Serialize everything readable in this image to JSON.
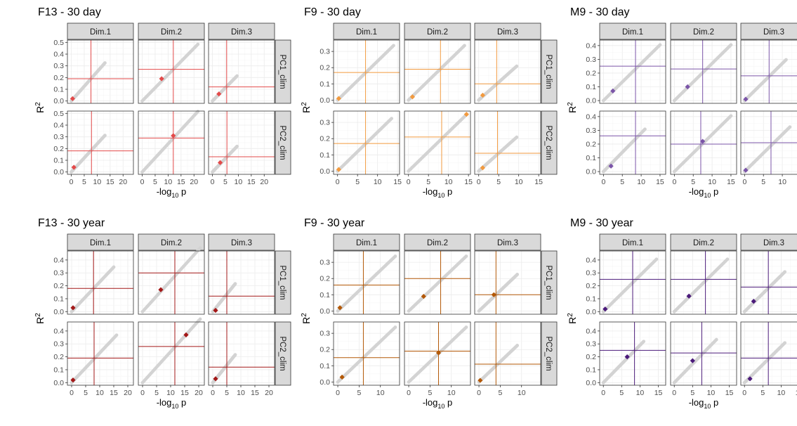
{
  "figure": {
    "facet_cols": [
      "Dim.1",
      "Dim.2",
      "Dim.3"
    ],
    "facet_rows": [
      "PC1_clim",
      "PC2_clim"
    ],
    "xlabel_base": "-log",
    "xlabel_sub": "10",
    "xlabel_tail": " p",
    "ylabel_base": "R",
    "ylabel_sup": "2",
    "background_point_color": "#d3d3d3"
  },
  "chart_data": [
    {
      "type": "scatter",
      "title": "F13 - 30 day",
      "color": "#e34a4a",
      "xlim": [
        -1.5,
        24
      ],
      "xticks": [
        0,
        5,
        10,
        15,
        20
      ],
      "ylim": [
        -0.02,
        0.52
      ],
      "yticks": [
        0.0,
        0.1,
        0.2,
        0.3,
        0.4,
        0.5
      ],
      "panels": [
        {
          "row": "PC1_clim",
          "col": "Dim.1",
          "vline": 7.6,
          "hline": 0.19,
          "point": [
            0.5,
            0.02
          ],
          "trend_xmax": 13,
          "trend_slope": 0.025
        },
        {
          "row": "PC1_clim",
          "col": "Dim.2",
          "vline": 12.0,
          "hline": 0.27,
          "point": [
            7.5,
            0.19
          ],
          "trend_xmax": 21.5,
          "trend_slope": 0.0225
        },
        {
          "row": "PC1_clim",
          "col": "Dim.3",
          "vline": 5.5,
          "hline": 0.12,
          "point": [
            2.5,
            0.06
          ],
          "trend_xmax": 9.5,
          "trend_slope": 0.0225
        },
        {
          "row": "PC2_clim",
          "col": "Dim.1",
          "vline": 7.8,
          "hline": 0.18,
          "point": [
            1.0,
            0.04
          ],
          "trend_xmax": 13,
          "trend_slope": 0.024
        },
        {
          "row": "PC2_clim",
          "col": "Dim.2",
          "vline": 12.0,
          "hline": 0.29,
          "point": [
            12.0,
            0.31
          ],
          "trend_xmax": 21.5,
          "trend_slope": 0.024
        },
        {
          "row": "PC2_clim",
          "col": "Dim.3",
          "vline": 5.6,
          "hline": 0.13,
          "point": [
            3.0,
            0.08
          ],
          "trend_xmax": 9.5,
          "trend_slope": 0.023
        }
      ]
    },
    {
      "type": "scatter",
      "title": "F9 - 30 day",
      "color": "#f29a3f",
      "xlim": [
        -1,
        15.5
      ],
      "xticks": [
        0,
        5,
        10,
        15
      ],
      "ylim": [
        -0.02,
        0.37
      ],
      "yticks": [
        0.0,
        0.1,
        0.2,
        0.3
      ],
      "panels": [
        {
          "row": "PC1_clim",
          "col": "Dim.1",
          "vline": 7.0,
          "hline": 0.17,
          "point": [
            0.3,
            0.01
          ],
          "trend_xmax": 14,
          "trend_slope": 0.024
        },
        {
          "row": "PC1_clim",
          "col": "Dim.2",
          "vline": 8.0,
          "hline": 0.19,
          "point": [
            1.0,
            0.02
          ],
          "trend_xmax": 14,
          "trend_slope": 0.024
        },
        {
          "row": "PC1_clim",
          "col": "Dim.3",
          "vline": 4.5,
          "hline": 0.1,
          "point": [
            1.0,
            0.03
          ],
          "trend_xmax": 9.5,
          "trend_slope": 0.022
        },
        {
          "row": "PC2_clim",
          "col": "Dim.1",
          "vline": 7.0,
          "hline": 0.17,
          "point": [
            0.3,
            0.01
          ],
          "trend_xmax": 13.5,
          "trend_slope": 0.024
        },
        {
          "row": "PC2_clim",
          "col": "Dim.2",
          "vline": 8.3,
          "hline": 0.21,
          "point": [
            14.5,
            0.35
          ],
          "trend_xmax": 14.5,
          "trend_slope": 0.024
        },
        {
          "row": "PC2_clim",
          "col": "Dim.3",
          "vline": 4.7,
          "hline": 0.11,
          "point": [
            1.0,
            0.02
          ],
          "trend_xmax": 9.5,
          "trend_slope": 0.022
        }
      ]
    },
    {
      "type": "scatter",
      "title": "M9 - 30 day",
      "color": "#7b55a8",
      "xlim": [
        -1,
        16.5
      ],
      "xticks": [
        0,
        5,
        10,
        15
      ],
      "ylim": [
        -0.02,
        0.44
      ],
      "yticks": [
        0.0,
        0.1,
        0.2,
        0.3,
        0.4
      ],
      "panels": [
        {
          "row": "PC1_clim",
          "col": "Dim.1",
          "vline": 8.5,
          "hline": 0.25,
          "point": [
            2.5,
            0.07
          ],
          "trend_xmax": 15,
          "trend_slope": 0.027
        },
        {
          "row": "PC1_clim",
          "col": "Dim.2",
          "vline": 7.5,
          "hline": 0.23,
          "point": [
            3.5,
            0.1
          ],
          "trend_xmax": 15,
          "trend_slope": 0.027
        },
        {
          "row": "PC1_clim",
          "col": "Dim.3",
          "vline": 6.5,
          "hline": 0.18,
          "point": [
            0.3,
            0.01
          ],
          "trend_xmax": 11,
          "trend_slope": 0.027
        },
        {
          "row": "PC2_clim",
          "col": "Dim.1",
          "vline": 8.5,
          "hline": 0.26,
          "point": [
            2.0,
            0.04
          ],
          "trend_xmax": 11,
          "trend_slope": 0.028
        },
        {
          "row": "PC2_clim",
          "col": "Dim.2",
          "vline": 7.0,
          "hline": 0.2,
          "point": [
            7.5,
            0.22
          ],
          "trend_xmax": 15,
          "trend_slope": 0.027
        },
        {
          "row": "PC2_clim",
          "col": "Dim.3",
          "vline": 7.0,
          "hline": 0.21,
          "point": [
            0.3,
            0.01
          ],
          "trend_xmax": 12,
          "trend_slope": 0.027
        }
      ]
    },
    {
      "type": "scatter",
      "title": "F13 - 30 year",
      "color": "#a31818",
      "xlim": [
        -1.5,
        22
      ],
      "xticks": [
        0,
        5,
        10,
        15,
        20
      ],
      "ylim": [
        -0.02,
        0.47
      ],
      "yticks": [
        0.0,
        0.1,
        0.2,
        0.3,
        0.4
      ],
      "panels": [
        {
          "row": "PC1_clim",
          "col": "Dim.1",
          "vline": 7.8,
          "hline": 0.18,
          "point": [
            0.5,
            0.03
          ],
          "trend_xmax": 15,
          "trend_slope": 0.023
        },
        {
          "row": "PC1_clim",
          "col": "Dim.2",
          "vline": 11.5,
          "hline": 0.3,
          "point": [
            6.5,
            0.17
          ],
          "trend_xmax": 20.5,
          "trend_slope": 0.024
        },
        {
          "row": "PC1_clim",
          "col": "Dim.3",
          "vline": 5.0,
          "hline": 0.12,
          "point": [
            1.0,
            0.01
          ],
          "trend_xmax": 8,
          "trend_slope": 0.027
        },
        {
          "row": "PC2_clim",
          "col": "Dim.1",
          "vline": 8.0,
          "hline": 0.19,
          "point": [
            0.5,
            0.02
          ],
          "trend_xmax": 16,
          "trend_slope": 0.023
        },
        {
          "row": "PC2_clim",
          "col": "Dim.2",
          "vline": 11.5,
          "hline": 0.28,
          "point": [
            15.5,
            0.37
          ],
          "trend_xmax": 20.5,
          "trend_slope": 0.024
        },
        {
          "row": "PC2_clim",
          "col": "Dim.3",
          "vline": 5.0,
          "hline": 0.12,
          "point": [
            1.0,
            0.03
          ],
          "trend_xmax": 8,
          "trend_slope": 0.027
        }
      ]
    },
    {
      "type": "scatter",
      "title": "F9 - 30 year",
      "color": "#b35806",
      "xlim": [
        -1,
        14.5
      ],
      "xticks": [
        0,
        5,
        10
      ],
      "ylim": [
        -0.02,
        0.37
      ],
      "yticks": [
        0.0,
        0.1,
        0.2,
        0.3
      ],
      "panels": [
        {
          "row": "PC1_clim",
          "col": "Dim.1",
          "vline": 6.0,
          "hline": 0.16,
          "point": [
            0.5,
            0.02
          ],
          "trend_xmax": 13.5,
          "trend_slope": 0.025
        },
        {
          "row": "PC1_clim",
          "col": "Dim.2",
          "vline": 7.5,
          "hline": 0.2,
          "point": [
            3.5,
            0.09
          ],
          "trend_xmax": 13.5,
          "trend_slope": 0.025
        },
        {
          "row": "PC1_clim",
          "col": "Dim.3",
          "vline": 4.0,
          "hline": 0.1,
          "point": [
            3.5,
            0.1
          ],
          "trend_xmax": 9,
          "trend_slope": 0.025
        },
        {
          "row": "PC2_clim",
          "col": "Dim.1",
          "vline": 6.0,
          "hline": 0.15,
          "point": [
            1.0,
            0.03
          ],
          "trend_xmax": 13.5,
          "trend_slope": 0.025
        },
        {
          "row": "PC2_clim",
          "col": "Dim.2",
          "vline": 7.0,
          "hline": 0.19,
          "point": [
            7.0,
            0.18
          ],
          "trend_xmax": 13.5,
          "trend_slope": 0.025
        },
        {
          "row": "PC2_clim",
          "col": "Dim.3",
          "vline": 4.0,
          "hline": 0.11,
          "point": [
            0.3,
            0.01
          ],
          "trend_xmax": 9,
          "trend_slope": 0.025
        }
      ]
    },
    {
      "type": "scatter",
      "title": "M9 - 30 year",
      "color": "#4b1a7a",
      "xlim": [
        -1,
        17
      ],
      "xticks": [
        0,
        5,
        10,
        15
      ],
      "ylim": [
        -0.02,
        0.47
      ],
      "yticks": [
        0.0,
        0.1,
        0.2,
        0.3,
        0.4
      ],
      "panels": [
        {
          "row": "PC1_clim",
          "col": "Dim.1",
          "vline": 8.0,
          "hline": 0.25,
          "point": [
            0.5,
            0.02
          ],
          "trend_xmax": 14.5,
          "trend_slope": 0.028
        },
        {
          "row": "PC1_clim",
          "col": "Dim.2",
          "vline": 8.5,
          "hline": 0.25,
          "point": [
            4.0,
            0.12
          ],
          "trend_xmax": 14.5,
          "trend_slope": 0.028
        },
        {
          "row": "PC1_clim",
          "col": "Dim.3",
          "vline": 6.5,
          "hline": 0.19,
          "point": [
            2.5,
            0.08
          ],
          "trend_xmax": 11,
          "trend_slope": 0.028
        },
        {
          "row": "PC2_clim",
          "col": "Dim.1",
          "vline": 8.5,
          "hline": 0.25,
          "point": [
            6.5,
            0.2
          ],
          "trend_xmax": 11,
          "trend_slope": 0.029
        },
        {
          "row": "PC2_clim",
          "col": "Dim.2",
          "vline": 7.5,
          "hline": 0.23,
          "point": [
            5.0,
            0.17
          ],
          "trend_xmax": 11.5,
          "trend_slope": 0.029
        },
        {
          "row": "PC2_clim",
          "col": "Dim.3",
          "vline": 6.5,
          "hline": 0.19,
          "point": [
            1.5,
            0.03
          ],
          "trend_xmax": 11,
          "trend_slope": 0.028
        }
      ]
    }
  ]
}
